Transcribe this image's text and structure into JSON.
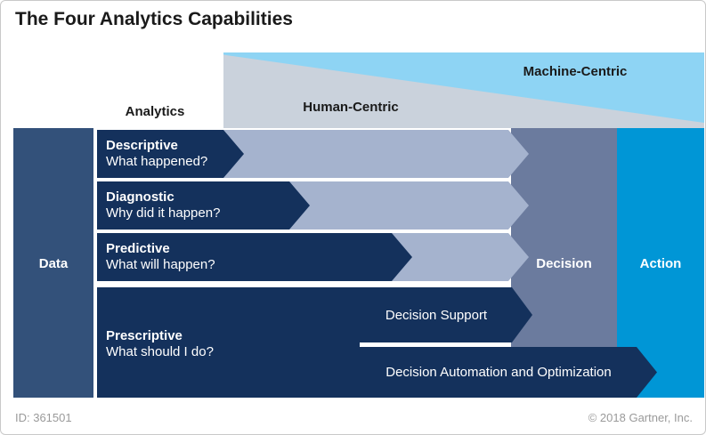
{
  "title": "The Four Analytics Capabilities",
  "bands": {
    "analytics_label": "Analytics",
    "human_centric": "Human-Centric",
    "machine_centric": "Machine-Centric"
  },
  "columns": {
    "data": "Data",
    "decision": "Decision",
    "action": "Action"
  },
  "rows": [
    {
      "name": "Descriptive",
      "question": "What happened?"
    },
    {
      "name": "Diagnostic",
      "question": "Why did it happen?"
    },
    {
      "name": "Predictive",
      "question": "What will happen?"
    },
    {
      "name": "Prescriptive",
      "question": "What should I do?"
    }
  ],
  "prescriptive_arrows": [
    "Decision Support",
    "Decision Automation and Optimization"
  ],
  "footer": {
    "id": "ID: 361501",
    "copyright": "© 2018 Gartner, Inc."
  },
  "colors": {
    "navy": "#14315c",
    "datacol": "#33517a",
    "band": "#a5b3ce",
    "slate": "#6b7b9e",
    "action": "#0096d6",
    "cyan": "#8ed4f4",
    "wedge": "#cad2dc",
    "ink": "#1a1a1a",
    "muted": "#9a9a9a"
  }
}
